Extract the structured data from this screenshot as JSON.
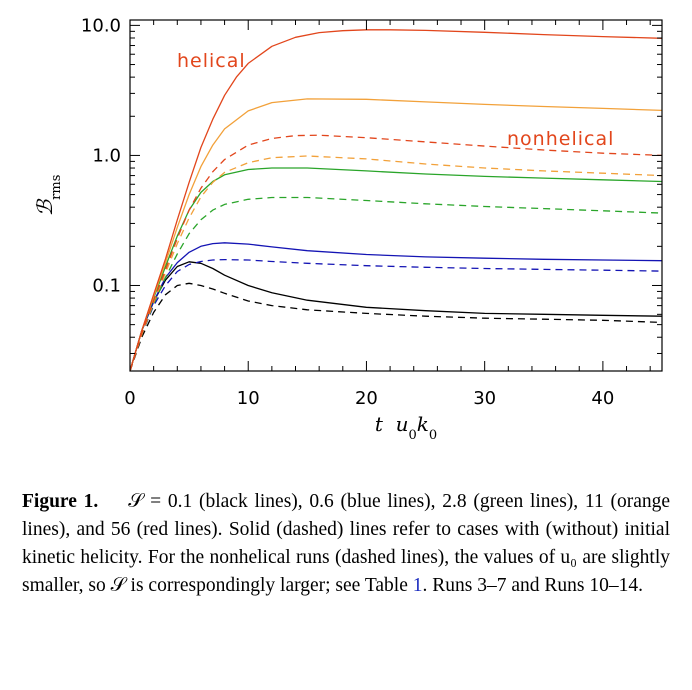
{
  "chart_data": {
    "type": "line",
    "xlabel": "t u0k0",
    "ylabel": "B_rms",
    "xlim": [
      0,
      45
    ],
    "ylim": [
      0.022,
      11
    ],
    "yscale": "log",
    "xticks": [
      "0",
      "10",
      "20",
      "30",
      "40"
    ],
    "yticks": [
      "10.0",
      "1.0",
      "0.1"
    ],
    "annotations": [
      {
        "text": "helical",
        "color": "#e2461c"
      },
      {
        "text": "nonhelical",
        "color": "#e2461c"
      }
    ],
    "series": [
      {
        "color": "#000000",
        "style": "solid",
        "points": [
          [
            0,
            0.022
          ],
          [
            1,
            0.045
          ],
          [
            2,
            0.075
          ],
          [
            3,
            0.11
          ],
          [
            4,
            0.14
          ],
          [
            5,
            0.152
          ],
          [
            6,
            0.148
          ],
          [
            7,
            0.135
          ],
          [
            8,
            0.12
          ],
          [
            10,
            0.1
          ],
          [
            12,
            0.088
          ],
          [
            15,
            0.077
          ],
          [
            20,
            0.068
          ],
          [
            25,
            0.064
          ],
          [
            30,
            0.061
          ],
          [
            35,
            0.06
          ],
          [
            40,
            0.059
          ],
          [
            45,
            0.058
          ]
        ]
      },
      {
        "color": "#000000",
        "style": "dashed",
        "points": [
          [
            0,
            0.022
          ],
          [
            1,
            0.04
          ],
          [
            2,
            0.062
          ],
          [
            3,
            0.085
          ],
          [
            4,
            0.1
          ],
          [
            5,
            0.104
          ],
          [
            6,
            0.1
          ],
          [
            7,
            0.094
          ],
          [
            8,
            0.087
          ],
          [
            10,
            0.076
          ],
          [
            12,
            0.07
          ],
          [
            15,
            0.065
          ],
          [
            20,
            0.061
          ],
          [
            25,
            0.058
          ],
          [
            30,
            0.056
          ],
          [
            35,
            0.055
          ],
          [
            40,
            0.054
          ],
          [
            45,
            0.052
          ]
        ]
      },
      {
        "color": "#1414b4",
        "style": "solid",
        "points": [
          [
            0,
            0.022
          ],
          [
            1,
            0.045
          ],
          [
            2,
            0.075
          ],
          [
            3,
            0.115
          ],
          [
            4,
            0.15
          ],
          [
            5,
            0.18
          ],
          [
            6,
            0.2
          ],
          [
            7,
            0.21
          ],
          [
            8,
            0.213
          ],
          [
            10,
            0.208
          ],
          [
            12,
            0.198
          ],
          [
            15,
            0.185
          ],
          [
            20,
            0.173
          ],
          [
            25,
            0.166
          ],
          [
            30,
            0.162
          ],
          [
            35,
            0.159
          ],
          [
            40,
            0.157
          ],
          [
            45,
            0.155
          ]
        ]
      },
      {
        "color": "#1414b4",
        "style": "dashed",
        "points": [
          [
            0,
            0.022
          ],
          [
            1,
            0.042
          ],
          [
            2,
            0.07
          ],
          [
            3,
            0.1
          ],
          [
            4,
            0.128
          ],
          [
            5,
            0.145
          ],
          [
            6,
            0.153
          ],
          [
            7,
            0.157
          ],
          [
            8,
            0.158
          ],
          [
            10,
            0.157
          ],
          [
            12,
            0.153
          ],
          [
            15,
            0.148
          ],
          [
            20,
            0.142
          ],
          [
            25,
            0.138
          ],
          [
            30,
            0.135
          ],
          [
            35,
            0.133
          ],
          [
            40,
            0.131
          ],
          [
            45,
            0.129
          ]
        ]
      },
      {
        "color": "#2aa52a",
        "style": "solid",
        "points": [
          [
            0,
            0.022
          ],
          [
            1,
            0.045
          ],
          [
            2,
            0.08
          ],
          [
            3,
            0.14
          ],
          [
            4,
            0.24
          ],
          [
            5,
            0.38
          ],
          [
            6,
            0.52
          ],
          [
            7,
            0.63
          ],
          [
            8,
            0.71
          ],
          [
            10,
            0.78
          ],
          [
            12,
            0.8
          ],
          [
            15,
            0.8
          ],
          [
            20,
            0.76
          ],
          [
            25,
            0.72
          ],
          [
            30,
            0.69
          ],
          [
            35,
            0.67
          ],
          [
            40,
            0.65
          ],
          [
            45,
            0.63
          ]
        ]
      },
      {
        "color": "#2aa52a",
        "style": "dashed",
        "points": [
          [
            0,
            0.022
          ],
          [
            1,
            0.042
          ],
          [
            2,
            0.072
          ],
          [
            3,
            0.115
          ],
          [
            4,
            0.175
          ],
          [
            5,
            0.25
          ],
          [
            6,
            0.32
          ],
          [
            7,
            0.38
          ],
          [
            8,
            0.42
          ],
          [
            10,
            0.46
          ],
          [
            12,
            0.475
          ],
          [
            15,
            0.475
          ],
          [
            20,
            0.45
          ],
          [
            25,
            0.425
          ],
          [
            30,
            0.405
          ],
          [
            35,
            0.39
          ],
          [
            40,
            0.375
          ],
          [
            45,
            0.36
          ]
        ]
      },
      {
        "color": "#f2a13a",
        "style": "solid",
        "points": [
          [
            0,
            0.022
          ],
          [
            1,
            0.045
          ],
          [
            2,
            0.082
          ],
          [
            3,
            0.15
          ],
          [
            4,
            0.28
          ],
          [
            5,
            0.5
          ],
          [
            6,
            0.82
          ],
          [
            7,
            1.2
          ],
          [
            8,
            1.6
          ],
          [
            10,
            2.2
          ],
          [
            12,
            2.55
          ],
          [
            15,
            2.72
          ],
          [
            20,
            2.7
          ],
          [
            25,
            2.58
          ],
          [
            30,
            2.47
          ],
          [
            35,
            2.38
          ],
          [
            40,
            2.3
          ],
          [
            45,
            2.22
          ]
        ]
      },
      {
        "color": "#f2a13a",
        "style": "dashed",
        "points": [
          [
            0,
            0.022
          ],
          [
            1,
            0.042
          ],
          [
            2,
            0.074
          ],
          [
            3,
            0.125
          ],
          [
            4,
            0.21
          ],
          [
            5,
            0.33
          ],
          [
            6,
            0.48
          ],
          [
            7,
            0.62
          ],
          [
            8,
            0.74
          ],
          [
            10,
            0.88
          ],
          [
            12,
            0.96
          ],
          [
            15,
            0.99
          ],
          [
            20,
            0.94
          ],
          [
            25,
            0.86
          ],
          [
            30,
            0.8
          ],
          [
            35,
            0.76
          ],
          [
            40,
            0.73
          ],
          [
            45,
            0.7
          ]
        ]
      },
      {
        "color": "#e2461c",
        "style": "solid",
        "points": [
          [
            0,
            0.022
          ],
          [
            1,
            0.045
          ],
          [
            2,
            0.085
          ],
          [
            3,
            0.16
          ],
          [
            4,
            0.32
          ],
          [
            5,
            0.62
          ],
          [
            6,
            1.15
          ],
          [
            7,
            1.9
          ],
          [
            8,
            2.9
          ],
          [
            9,
            4.0
          ],
          [
            10,
            5.1
          ],
          [
            12,
            6.9
          ],
          [
            14,
            8.1
          ],
          [
            16,
            8.8
          ],
          [
            18,
            9.1
          ],
          [
            20,
            9.25
          ],
          [
            22,
            9.25
          ],
          [
            25,
            9.15
          ],
          [
            30,
            8.85
          ],
          [
            35,
            8.5
          ],
          [
            40,
            8.2
          ],
          [
            45,
            7.95
          ]
        ]
      },
      {
        "color": "#e2461c",
        "style": "dashed",
        "points": [
          [
            0,
            0.022
          ],
          [
            1,
            0.043
          ],
          [
            2,
            0.076
          ],
          [
            3,
            0.132
          ],
          [
            4,
            0.23
          ],
          [
            5,
            0.38
          ],
          [
            6,
            0.56
          ],
          [
            7,
            0.75
          ],
          [
            8,
            0.93
          ],
          [
            10,
            1.2
          ],
          [
            12,
            1.35
          ],
          [
            14,
            1.42
          ],
          [
            16,
            1.43
          ],
          [
            20,
            1.37
          ],
          [
            25,
            1.27
          ],
          [
            30,
            1.18
          ],
          [
            35,
            1.1
          ],
          [
            40,
            1.04
          ],
          [
            45,
            1.0
          ]
        ]
      }
    ]
  },
  "caption": {
    "figure_label": "Figure 1.",
    "text": "𝒮 = 0.1 (black lines), 0.6 (blue lines), 2.8 (green lines), 11 (orange lines), and 56 (red lines). Solid (dashed) lines refer to cases with (without) initial kinetic helicity. For the nonhelical runs (dashed lines), the values of u₀ are slightly smaller, so 𝒮 is correspondingly larger; see Table ",
    "table_ref": "1",
    "tail": ". Runs 3–7 and Runs 10–14."
  }
}
